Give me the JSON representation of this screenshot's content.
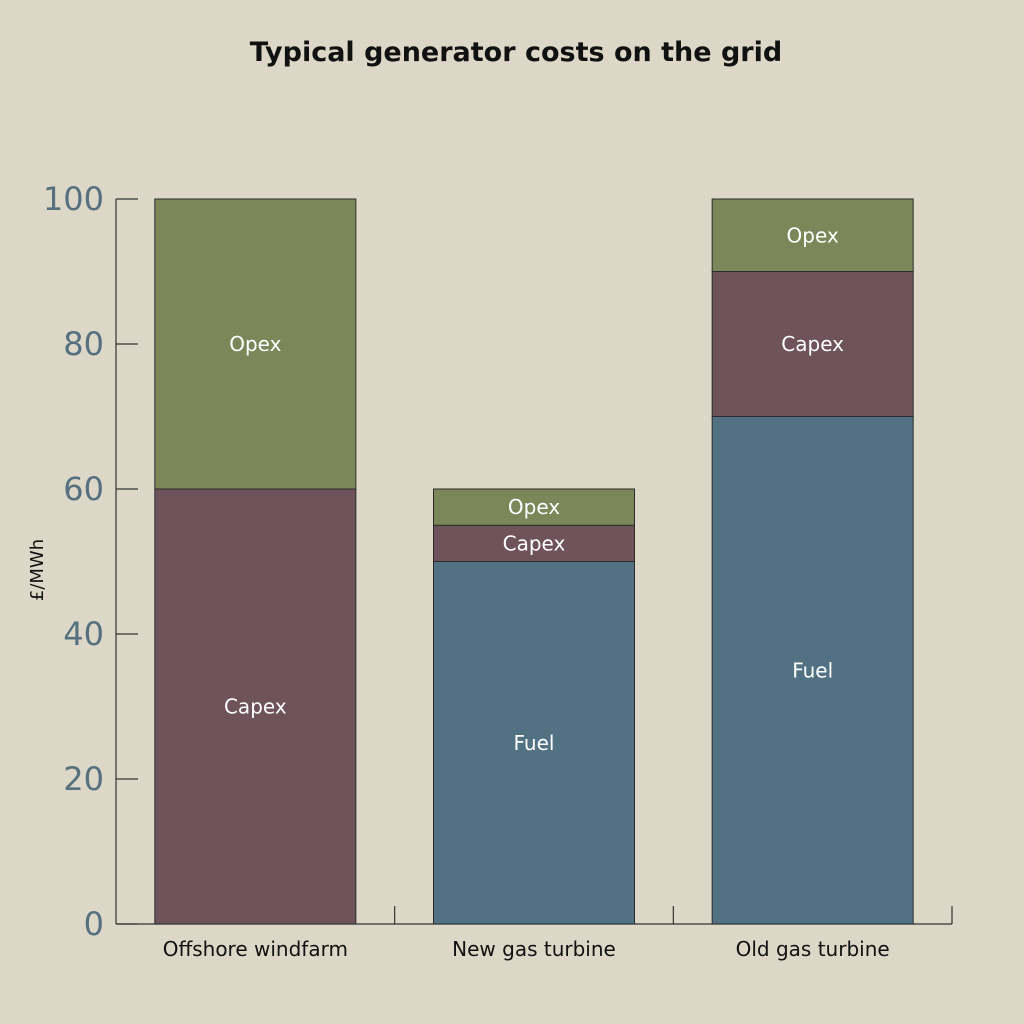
{
  "chart_data": {
    "type": "bar",
    "stacked": true,
    "title": "Typical generator costs on the grid",
    "ylabel": "£/MWh",
    "xlabel": "",
    "ylim": [
      0,
      100
    ],
    "yticks": [
      0,
      20,
      40,
      60,
      80,
      100
    ],
    "categories": [
      "Offshore windfarm",
      "New gas turbine",
      "Old gas turbine"
    ],
    "series": [
      {
        "name": "Fuel",
        "color": "#527284",
        "values": [
          0,
          50,
          70
        ]
      },
      {
        "name": "Capex",
        "color": "#6f535b",
        "values": [
          60,
          5,
          20
        ]
      },
      {
        "name": "Opex",
        "color": "#7b8758",
        "values": [
          40,
          5,
          10
        ]
      }
    ],
    "grid": false,
    "legend": "none"
  }
}
